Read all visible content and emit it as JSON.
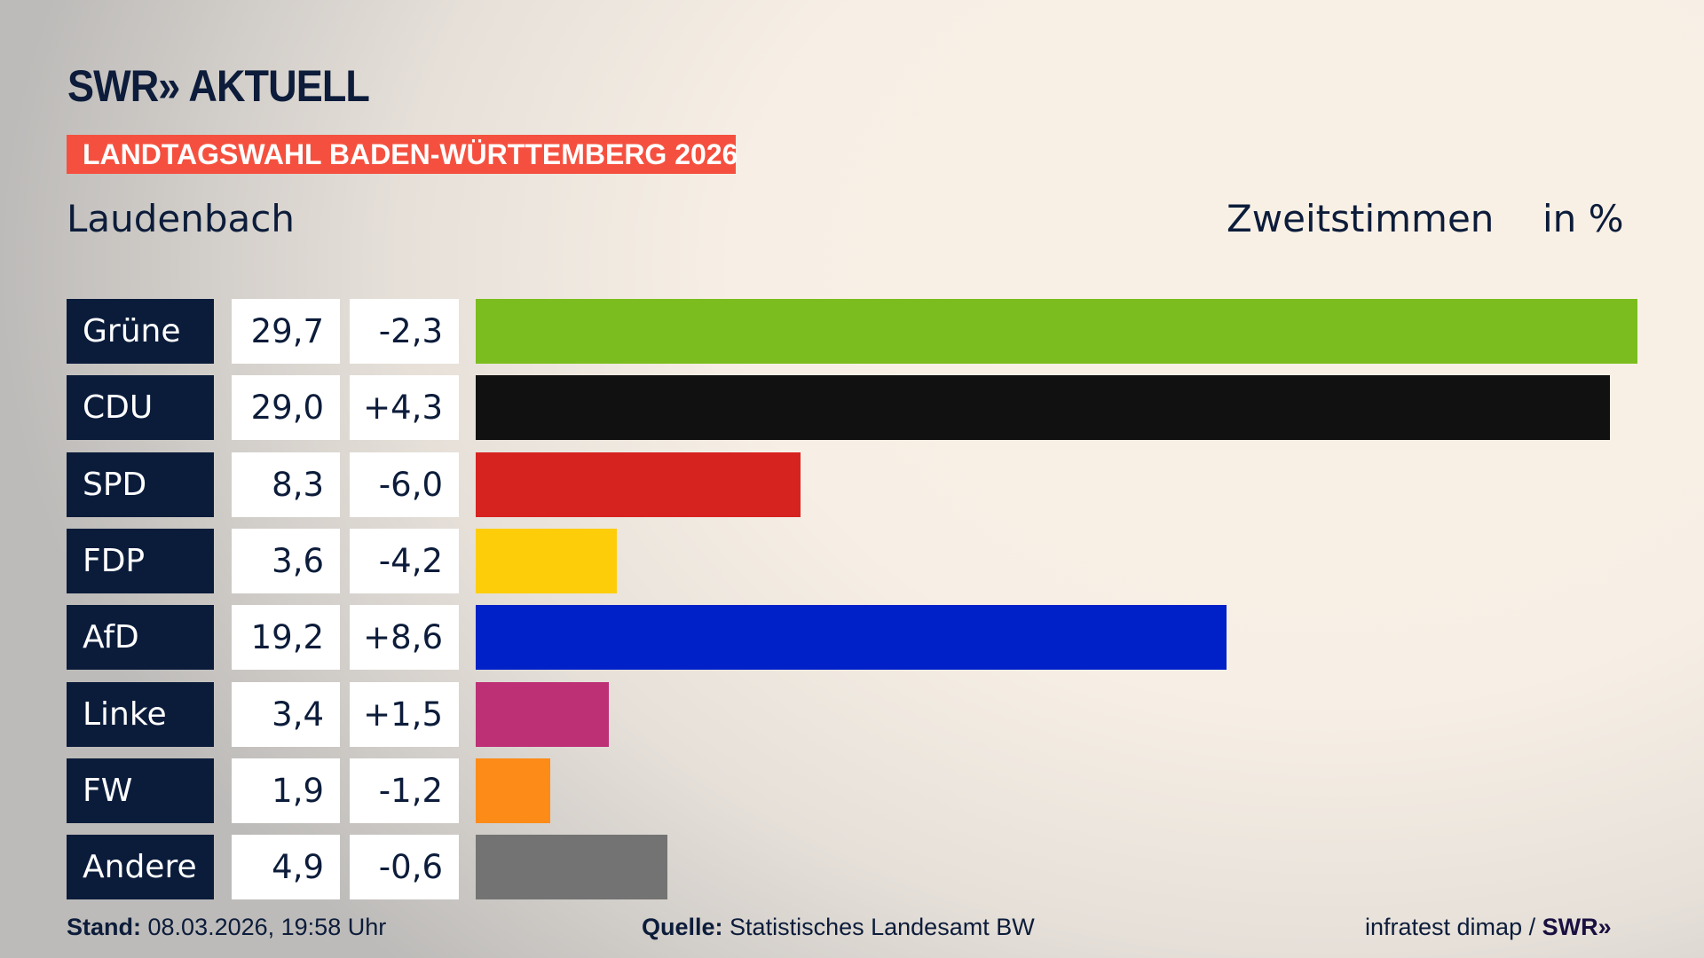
{
  "header": {
    "logo": "SWR» AKTUELL",
    "banner": "LANDTAGSWAHL BADEN-WÜRTTEMBERG 2026",
    "place": "Laudenbach",
    "vote_type": "Zweitstimmen",
    "unit": "in %"
  },
  "chart_data": {
    "type": "bar",
    "title": "Laudenbach – Zweitstimmen in %",
    "categories": [
      "Grüne",
      "CDU",
      "SPD",
      "FDP",
      "AfD",
      "Linke",
      "FW",
      "Andere"
    ],
    "values": [
      29.7,
      29.0,
      8.3,
      3.6,
      19.2,
      3.4,
      1.9,
      4.9
    ],
    "value_labels": [
      "29,7",
      "29,0",
      "8,3",
      "3,6",
      "19,2",
      "3,4",
      "1,9",
      "4,9"
    ],
    "change_labels": [
      "-2,3",
      "+4,3",
      "-6,0",
      "-4,2",
      "+8,6",
      "+1,5",
      "-1,2",
      "-0,6"
    ],
    "changes": [
      -2.3,
      4.3,
      -6.0,
      -4.2,
      8.6,
      1.5,
      -1.2,
      -0.6
    ],
    "colors": [
      "#7bbd1e",
      "#111111",
      "#d72320",
      "#fecd0a",
      "#0021c8",
      "#bd3076",
      "#fd8b17",
      "#737373"
    ],
    "xlim": [
      0,
      29.7
    ]
  },
  "footer": {
    "stand_label": "Stand:",
    "stand_value": "08.03.2026, 19:58 Uhr",
    "source_label": "Quelle:",
    "source_value": "Statistisches Landesamt BW",
    "credit": "infratest dimap /",
    "credit_logo": "SWR»"
  }
}
